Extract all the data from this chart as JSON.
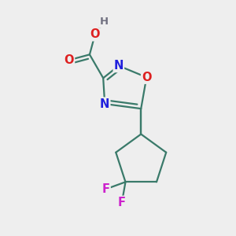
{
  "background_color": "#eeeeee",
  "atom_colors": {
    "C": "#3a7a6a",
    "N": "#2020dd",
    "O": "#dd2020",
    "F": "#cc22cc",
    "H": "#707080"
  },
  "bond_color": "#3a7a6a",
  "bond_width": 1.6,
  "figsize": [
    3.0,
    3.0
  ],
  "dpi": 100,
  "xlim": [
    0,
    10
  ],
  "ylim": [
    0,
    10
  ]
}
